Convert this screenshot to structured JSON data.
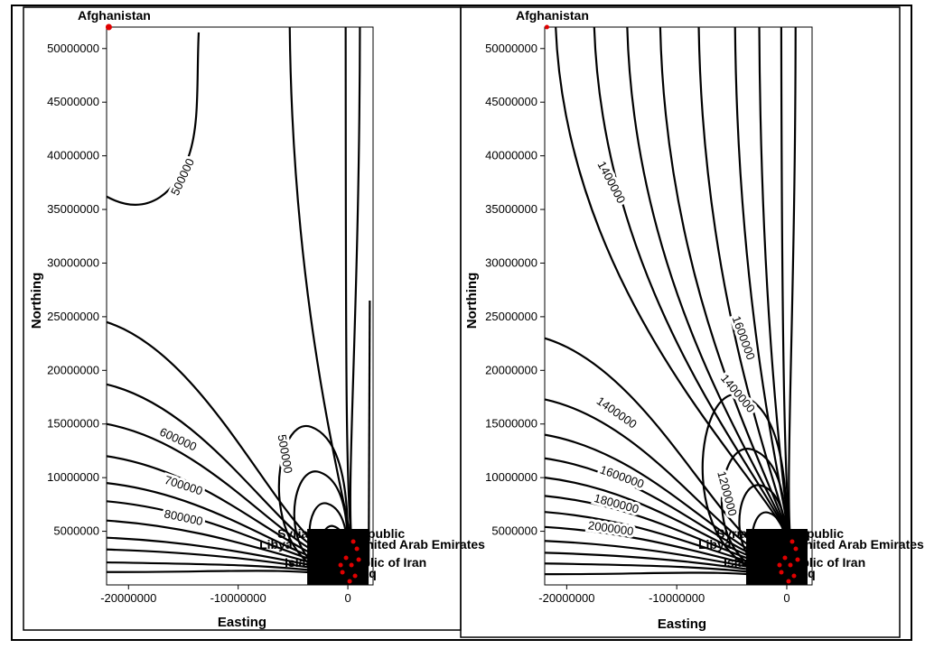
{
  "chart_data": [
    {
      "type": "contour",
      "xlabel": "Easting",
      "ylabel": "Northing",
      "xticks": [
        -20000000,
        -10000000,
        0
      ],
      "xtick_labels": [
        "-20000000",
        "-10000000",
        "0"
      ],
      "yticks": [
        5000000,
        10000000,
        15000000,
        20000000,
        25000000,
        30000000,
        35000000,
        40000000,
        45000000,
        50000000
      ],
      "ytick_labels": [
        "5000000",
        "10000000",
        "15000000",
        "20000000",
        "25000000",
        "30000000",
        "35000000",
        "40000000",
        "45000000",
        "50000000"
      ],
      "xlim": [
        -22000000,
        2300000
      ],
      "ylim": [
        0,
        52000000
      ],
      "contour_labels": [
        {
          "text": "500000",
          "x": -15000000,
          "y": 38000000,
          "angle": -65
        },
        {
          "text": "600000",
          "x": -15500000,
          "y": 13500000,
          "angle": 25
        },
        {
          "text": "700000",
          "x": -15000000,
          "y": 9200000,
          "angle": 18
        },
        {
          "text": "800000",
          "x": -15000000,
          "y": 6200000,
          "angle": 12
        },
        {
          "text": "500000",
          "x": -5800000,
          "y": 12200000,
          "angle": 80
        }
      ],
      "points": [
        {
          "name": "Afghanistan",
          "x": -21800000,
          "y": 52000000
        }
      ],
      "overlap_labels": [
        "Syrian Arab Republic",
        "Libya",
        "United Arab Emirates",
        "Islamic Republic of Iran",
        "Iraq"
      ],
      "point_color": "#e00000"
    },
    {
      "type": "contour",
      "xlabel": "Easting",
      "ylabel": "Northing",
      "xticks": [
        -20000000,
        -10000000,
        0
      ],
      "xtick_labels": [
        "-20000000",
        "-10000000",
        "0"
      ],
      "yticks": [
        5000000,
        10000000,
        15000000,
        20000000,
        25000000,
        30000000,
        35000000,
        40000000,
        45000000,
        50000000
      ],
      "ytick_labels": [
        "5000000",
        "10000000",
        "15000000",
        "20000000",
        "25000000",
        "30000000",
        "35000000",
        "40000000",
        "45000000",
        "50000000"
      ],
      "xlim": [
        -22000000,
        2300000
      ],
      "ylim": [
        0,
        52000000
      ],
      "contour_labels": [
        {
          "text": "1400000",
          "x": -16000000,
          "y": 37500000,
          "angle": 62
        },
        {
          "text": "1600000",
          "x": -4000000,
          "y": 23000000,
          "angle": 70
        },
        {
          "text": "1400000",
          "x": -4500000,
          "y": 17800000,
          "angle": 50
        },
        {
          "text": "1400000",
          "x": -15500000,
          "y": 16000000,
          "angle": 35
        },
        {
          "text": "1600000",
          "x": -15000000,
          "y": 10000000,
          "angle": 20
        },
        {
          "text": "1800000",
          "x": -15500000,
          "y": 7500000,
          "angle": 15
        },
        {
          "text": "2000000",
          "x": -16000000,
          "y": 5200000,
          "angle": 8
        },
        {
          "text": "1200000",
          "x": -5500000,
          "y": 8500000,
          "angle": 75
        }
      ],
      "points": [
        {
          "name": "Afghanistan",
          "x": -21800000,
          "y": 52000000
        }
      ],
      "overlap_labels": [
        "Syrian Arab Republic",
        "Libya",
        "United Arab Emirates",
        "Islamic Republic of Iran",
        "Iraq"
      ],
      "point_color": "#e00000"
    }
  ]
}
